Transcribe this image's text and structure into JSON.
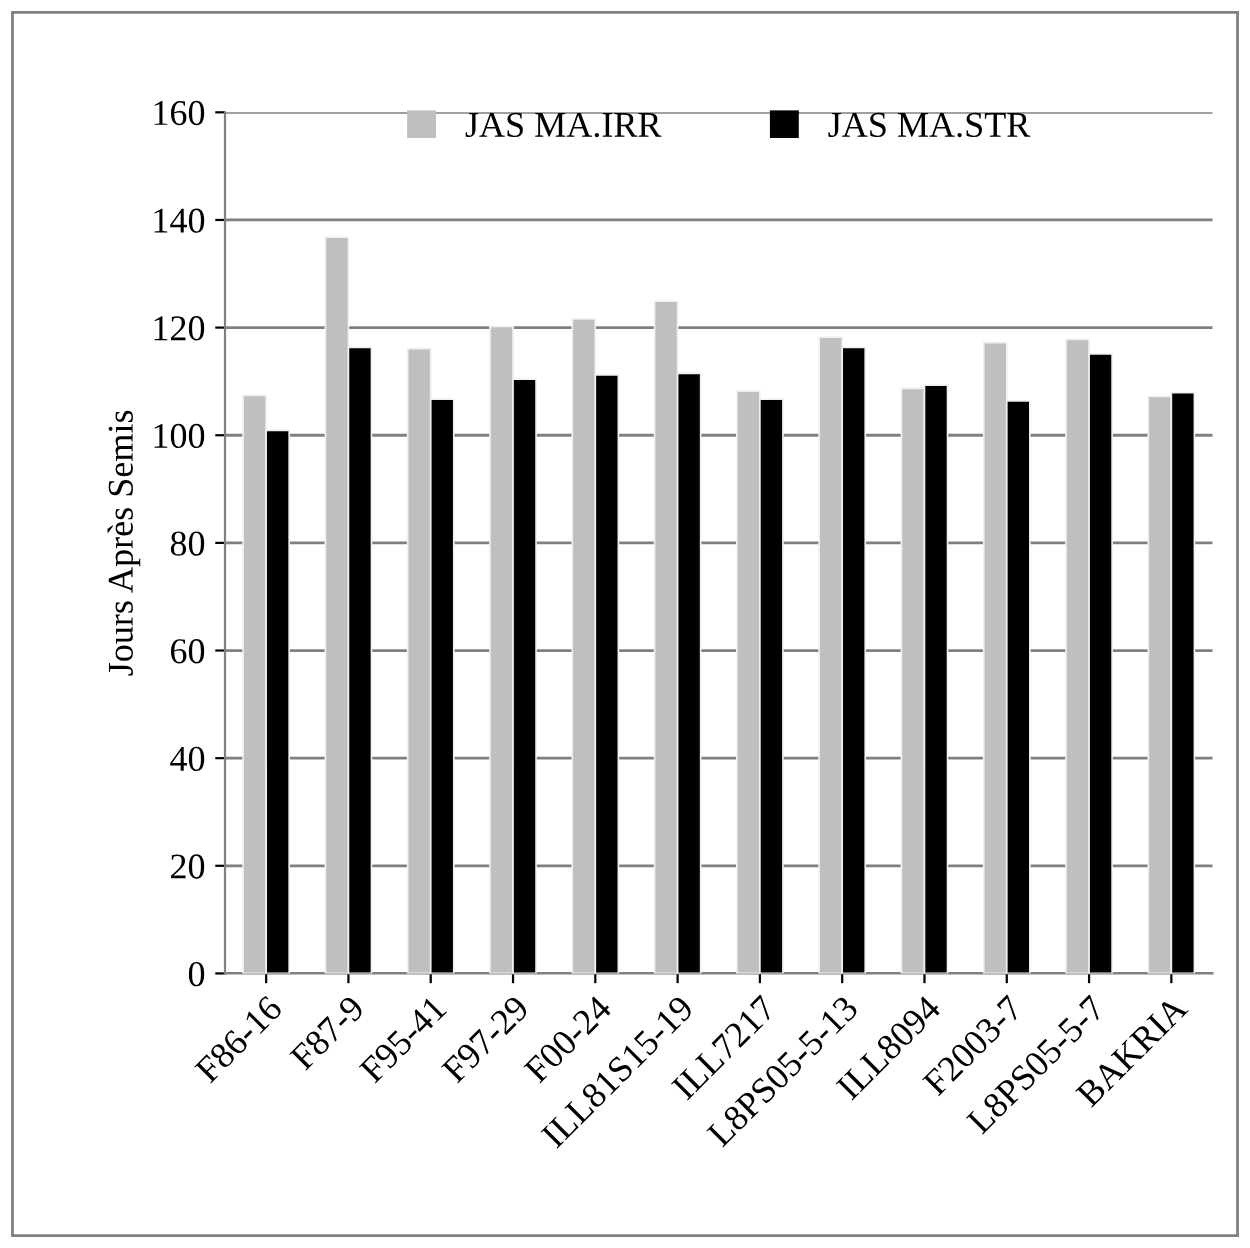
{
  "chart_data": {
    "type": "bar",
    "ylabel": "Jours Après Semis",
    "categories": [
      "F86-16",
      "F87-9",
      "F95-41",
      "F97-29",
      "F00-24",
      "ILL81S15-19",
      "ILL7217",
      "L8PS05-5-13",
      "ILL8094",
      "F2003-7",
      "L8PS05-5-7",
      "BAKRIA"
    ],
    "series": [
      {
        "name": "JAS MA.IRR",
        "color": "#bfbfbf",
        "values": [
          107.4,
          136.8,
          116.1,
          120.2,
          121.6,
          124.9,
          108.2,
          118.2,
          108.7,
          117.2,
          117.8,
          107.2
        ]
      },
      {
        "name": "JAS MA.STR",
        "color": "#000000",
        "values": [
          100.9,
          116.3,
          106.7,
          110.4,
          111.2,
          111.5,
          106.7,
          116.3,
          109.3,
          106.4,
          115.1,
          107.9
        ]
      }
    ],
    "ylim": [
      0,
      160
    ],
    "yticks": [
      0,
      20,
      40,
      60,
      80,
      100,
      120,
      140,
      160
    ],
    "grid": "y",
    "legend": "top"
  }
}
